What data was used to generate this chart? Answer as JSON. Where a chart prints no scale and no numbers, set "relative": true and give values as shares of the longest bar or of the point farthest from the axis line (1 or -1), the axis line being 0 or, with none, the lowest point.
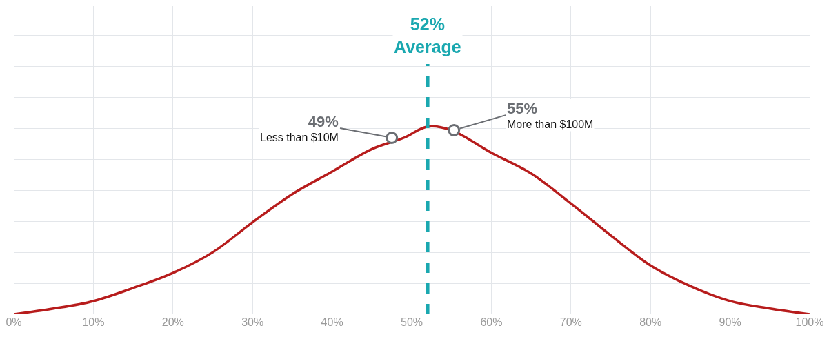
{
  "chart_data": {
    "type": "line",
    "relative": true,
    "x": [
      0,
      5,
      10,
      15,
      20,
      25,
      30,
      35,
      40,
      45,
      49,
      52,
      55,
      60,
      65,
      70,
      75,
      80,
      85,
      90,
      95,
      100
    ],
    "xlim": [
      0,
      100
    ],
    "xticks": [
      {
        "value": 0,
        "label": "0%"
      },
      {
        "value": 10,
        "label": "10%"
      },
      {
        "value": 20,
        "label": "20%"
      },
      {
        "value": 30,
        "label": "30%"
      },
      {
        "value": 40,
        "label": "40%"
      },
      {
        "value": 50,
        "label": "50%"
      },
      {
        "value": 60,
        "label": "60%"
      },
      {
        "value": 70,
        "label": "70%"
      },
      {
        "value": 80,
        "label": "80%"
      },
      {
        "value": 90,
        "label": "90%"
      },
      {
        "value": 100,
        "label": "100%"
      }
    ],
    "tick_labels": "x",
    "grid": true,
    "marker": "none",
    "line_style": "solid",
    "series": [
      {
        "color": "#b71c1c",
        "values": [
          0.0,
          0.03,
          0.07,
          0.14,
          0.22,
          0.33,
          0.49,
          0.64,
          0.76,
          0.88,
          0.94,
          1.0,
          0.98,
          0.86,
          0.75,
          0.59,
          0.42,
          0.26,
          0.15,
          0.07,
          0.03,
          0.0
        ]
      },
      {
        "type": "scatter",
        "marker": "circle",
        "color": "#6b6e73",
        "x": [
          47.5,
          55.3
        ],
        "values": [
          0.94,
          0.98
        ]
      }
    ],
    "ref_lines": [
      {
        "axis": "x",
        "value": 52,
        "label": "52%\nAverage",
        "color": "#1aa8b0",
        "line_style": "dashed"
      }
    ],
    "annotations": [
      {
        "text": "49%\nLess than $10M",
        "x": 47.5,
        "y": 0.94
      },
      {
        "text": "55%\nMore than $100M",
        "x": 55.3,
        "y": 0.98
      }
    ]
  }
}
